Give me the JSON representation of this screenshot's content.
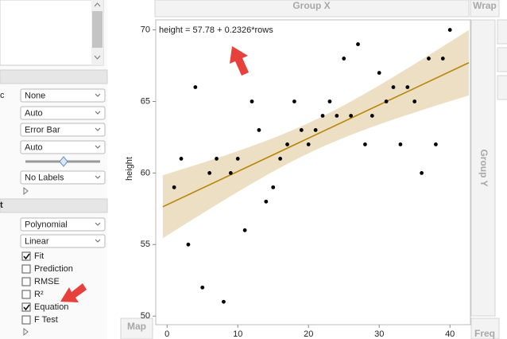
{
  "left_panel": {
    "section_label_1": "c",
    "dropdowns_1": [
      "None",
      "Auto",
      "Error Bar",
      "Auto"
    ],
    "dropdown_labels": "No Labels",
    "section_label_2": "t",
    "dropdowns_2": [
      "Polynomial",
      "Linear"
    ],
    "checkboxes": [
      {
        "label": "Fit",
        "checked": true
      },
      {
        "label": "Prediction",
        "checked": false
      },
      {
        "label": "RMSE",
        "checked": false
      },
      {
        "label": "R²",
        "checked": false
      },
      {
        "label": "Equation",
        "checked": true
      },
      {
        "label": "F Test",
        "checked": false
      }
    ]
  },
  "zones": {
    "group_x": "Group X",
    "wrap": "Wrap",
    "group_y": "Group Y",
    "map": "Map",
    "freq": "Freq"
  },
  "chart_data": {
    "type": "scatter",
    "ylabel": "height",
    "annotation": "height = 57.78 + 0.2326*rows",
    "x": [
      1,
      2,
      3,
      4,
      5,
      6,
      7,
      8,
      9,
      10,
      11,
      12,
      13,
      14,
      15,
      16,
      17,
      18,
      19,
      20,
      21,
      22,
      23,
      24,
      25,
      26,
      27,
      28,
      29,
      30,
      31,
      32,
      33,
      34,
      35,
      36,
      37,
      38,
      39,
      40
    ],
    "values": [
      59,
      61,
      55,
      66,
      52,
      60,
      61,
      51,
      60,
      61,
      56,
      65,
      63,
      58,
      59,
      61,
      62,
      65,
      63,
      62,
      63,
      64,
      65,
      64,
      68,
      64,
      69,
      62,
      64,
      67,
      65,
      66,
      62,
      66,
      65,
      60,
      68,
      62,
      68,
      70
    ],
    "color": "#000000",
    "fit_color": "#b8860b",
    "band_color": "#ead9b9",
    "xlim": [
      -1.6,
      42.9
    ],
    "ylim": [
      49.4,
      70.7
    ],
    "xticks": [
      0,
      10,
      20,
      30,
      40
    ],
    "yticks": [
      50,
      55,
      60,
      65,
      70
    ]
  }
}
